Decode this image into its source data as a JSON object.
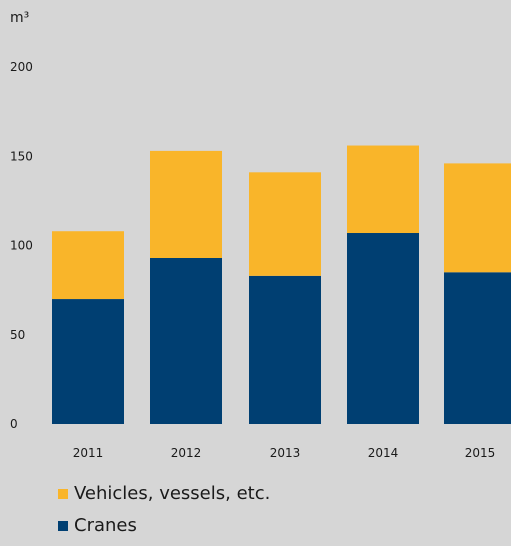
{
  "chart_data": {
    "type": "bar",
    "stacked": true,
    "categories": [
      "2011",
      "2012",
      "2013",
      "2014",
      "2015"
    ],
    "series": [
      {
        "name": "Cranes",
        "values": [
          70,
          93,
          83,
          107,
          85
        ],
        "color": "#003f72"
      },
      {
        "name": "Vehicles, vessels, etc.",
        "values": [
          38,
          60,
          58,
          49,
          61
        ],
        "color": "#f9b52a"
      }
    ],
    "ylabel": "m³",
    "yticks": [
      "0",
      "50",
      "100",
      "150",
      "200"
    ],
    "ylim": [
      0,
      200
    ],
    "grid": false,
    "legend_position": "bottom-left"
  },
  "legend": [
    {
      "label": "Vehicles, vessels, etc.",
      "color": "#f9b52a"
    },
    {
      "label": "Cranes",
      "color": "#003f72"
    }
  ]
}
